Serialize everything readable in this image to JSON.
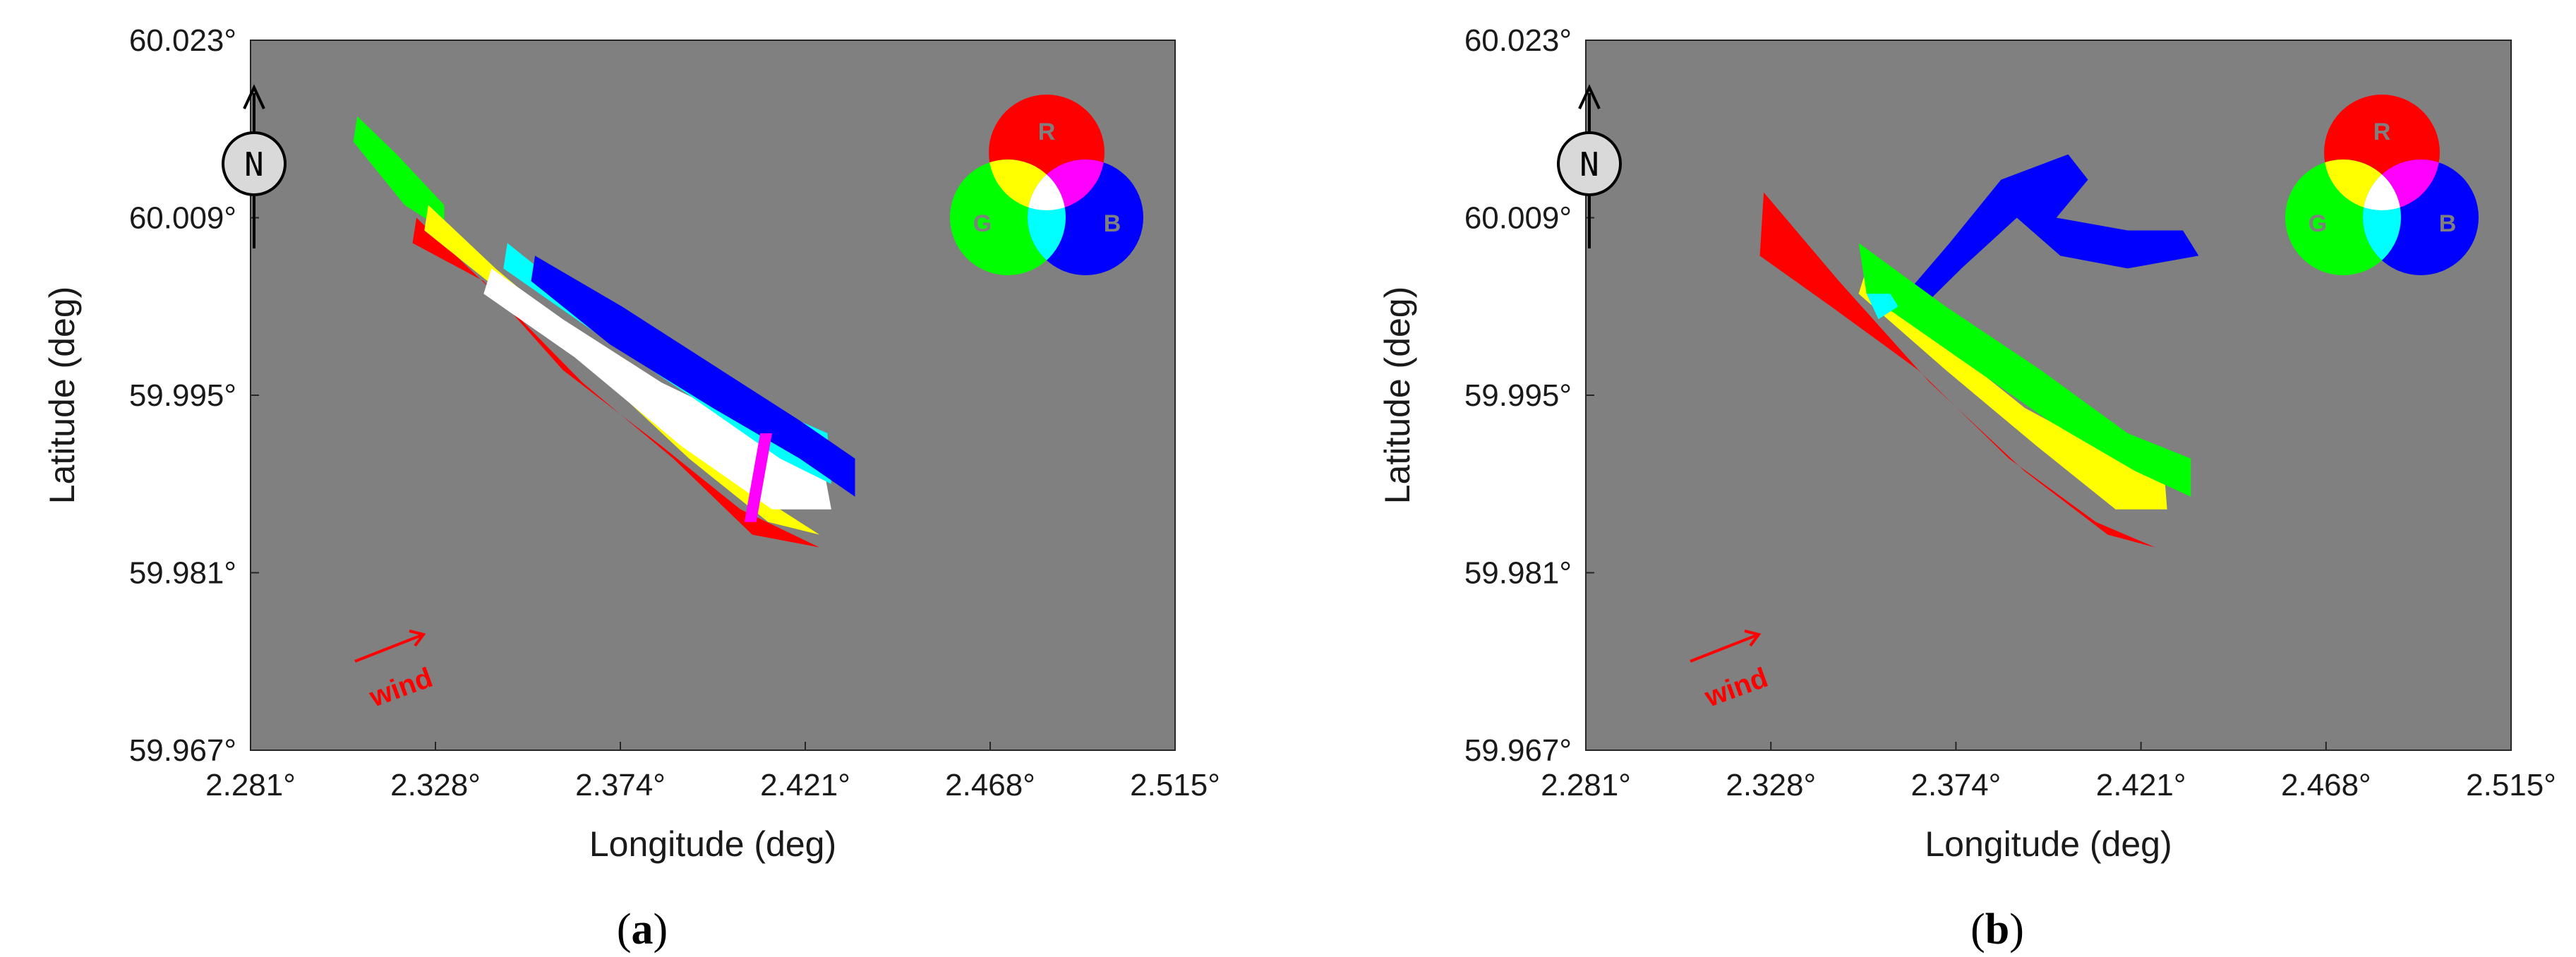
{
  "panels": [
    {
      "label": "a"
    },
    {
      "label": "b"
    }
  ],
  "legend": {
    "r": "R",
    "g": "G",
    "b": "B"
  },
  "north_label": "N",
  "wind_label": "wind",
  "colors": {
    "background": "#808080",
    "red": "#ff0000",
    "green": "#00ff00",
    "blue": "#0000ff",
    "yellow": "#ffff00",
    "cyan": "#00ffff",
    "magenta": "#ff00ff",
    "white": "#ffffff"
  },
  "chart_data": [
    {
      "type": "heatmap",
      "description_of_mapping": "RGB composite",
      "xlabel": "Longitude (deg)",
      "ylabel": "Latitude (deg)",
      "xticks": [
        "2.281°",
        "2.328°",
        "2.374°",
        "2.421°",
        "2.468°",
        "2.515°"
      ],
      "yticks": [
        "60.023°",
        "60.009°",
        "59.995°",
        "59.981°",
        "59.967°"
      ],
      "xlim": [
        2.281,
        2.515
      ],
      "ylim": [
        59.967,
        60.023
      ],
      "regions": [
        {
          "color": "green",
          "polygon": [
            [
              2.308,
              60.017
            ],
            [
              2.318,
              60.014
            ],
            [
              2.33,
              60.01
            ],
            [
              2.33,
              60.008
            ],
            [
              2.32,
              60.01
            ],
            [
              2.307,
              60.015
            ]
          ]
        },
        {
          "color": "red",
          "polygon": [
            [
              2.323,
              60.009
            ],
            [
              2.343,
              60.003
            ],
            [
              2.365,
              59.996
            ],
            [
              2.388,
              59.99
            ],
            [
              2.408,
              59.984
            ],
            [
              2.425,
              59.983
            ],
            [
              2.405,
              59.986
            ],
            [
              2.385,
              59.991
            ],
            [
              2.36,
              59.997
            ],
            [
              2.34,
              60.004
            ],
            [
              2.322,
              60.007
            ]
          ]
        },
        {
          "color": "yellow",
          "polygon": [
            [
              2.325,
              60.008
            ],
            [
              2.345,
              60.003
            ],
            [
              2.368,
              59.997
            ],
            [
              2.392,
              59.99
            ],
            [
              2.412,
              59.985
            ],
            [
              2.425,
              59.984
            ],
            [
              2.41,
              59.987
            ],
            [
              2.386,
              59.993
            ],
            [
              2.362,
              60.0
            ],
            [
              2.343,
              60.005
            ],
            [
              2.326,
              60.01
            ]
          ]
        },
        {
          "color": "white",
          "polygon": [
            [
              2.34,
              60.003
            ],
            [
              2.363,
              59.998
            ],
            [
              2.39,
              59.991
            ],
            [
              2.413,
              59.986
            ],
            [
              2.428,
              59.986
            ],
            [
              2.425,
              59.991
            ],
            [
              2.405,
              59.993
            ],
            [
              2.385,
              59.996
            ],
            [
              2.36,
              60.001
            ],
            [
              2.342,
              60.005
            ]
          ]
        },
        {
          "color": "cyan",
          "polygon": [
            [
              2.345,
              60.005
            ],
            [
              2.368,
              60.0
            ],
            [
              2.392,
              59.995
            ],
            [
              2.415,
              59.99
            ],
            [
              2.428,
              59.988
            ],
            [
              2.427,
              59.992
            ],
            [
              2.405,
              59.995
            ],
            [
              2.38,
              59.999
            ],
            [
              2.358,
              60.004
            ],
            [
              2.346,
              60.007
            ]
          ]
        },
        {
          "color": "blue",
          "polygon": [
            [
              2.353,
              60.006
            ],
            [
              2.375,
              60.002
            ],
            [
              2.4,
              59.997
            ],
            [
              2.42,
              59.993
            ],
            [
              2.434,
              59.99
            ],
            [
              2.434,
              59.987
            ],
            [
              2.42,
              59.99
            ],
            [
              2.398,
              59.994
            ],
            [
              2.372,
              59.999
            ],
            [
              2.352,
              60.004
            ]
          ]
        },
        {
          "color": "magenta",
          "polygon": [
            [
              2.406,
              59.985
            ],
            [
              2.409,
              59.985
            ],
            [
              2.413,
              59.992
            ],
            [
              2.41,
              59.992
            ]
          ]
        }
      ]
    },
    {
      "type": "heatmap",
      "description_of_mapping": "RGB composite",
      "xlabel": "Longitude (deg)",
      "ylabel": "Latitude (deg)",
      "xticks": [
        "2.281°",
        "2.328°",
        "2.374°",
        "2.421°",
        "2.468°",
        "2.515°"
      ],
      "yticks": [
        "60.023°",
        "60.009°",
        "59.995°",
        "59.981°",
        "59.967°"
      ],
      "xlim": [
        2.281,
        2.515
      ],
      "ylim": [
        59.967,
        60.023
      ],
      "regions": [
        {
          "color": "blue",
          "polygon": [
            [
              2.362,
              60.003
            ],
            [
              2.373,
              60.007
            ],
            [
              2.386,
              60.012
            ],
            [
              2.403,
              60.014
            ],
            [
              2.408,
              60.012
            ],
            [
              2.4,
              60.009
            ],
            [
              2.418,
              60.008
            ],
            [
              2.432,
              60.008
            ],
            [
              2.436,
              60.006
            ],
            [
              2.418,
              60.005
            ],
            [
              2.401,
              60.006
            ],
            [
              2.39,
              60.009
            ],
            [
              2.376,
              60.005
            ],
            [
              2.363,
              60.001
            ]
          ]
        },
        {
          "color": "red",
          "polygon": [
            [
              2.326,
              60.011
            ],
            [
              2.345,
              60.004
            ],
            [
              2.368,
              59.996
            ],
            [
              2.392,
              59.989
            ],
            [
              2.413,
              59.984
            ],
            [
              2.425,
              59.983
            ],
            [
              2.41,
              59.985
            ],
            [
              2.388,
              59.99
            ],
            [
              2.365,
              59.997
            ],
            [
              2.343,
              60.002
            ],
            [
              2.325,
              60.006
            ]
          ]
        },
        {
          "color": "yellow",
          "polygon": [
            [
              2.35,
              60.003
            ],
            [
              2.372,
              59.997
            ],
            [
              2.395,
              59.991
            ],
            [
              2.415,
              59.986
            ],
            [
              2.428,
              59.986
            ],
            [
              2.427,
              59.99
            ],
            [
              2.41,
              59.991
            ],
            [
              2.392,
              59.994
            ],
            [
              2.372,
              59.999
            ],
            [
              2.352,
              60.005
            ]
          ]
        },
        {
          "color": "green",
          "polygon": [
            [
              2.35,
              60.007
            ],
            [
              2.372,
              60.002
            ],
            [
              2.396,
              59.997
            ],
            [
              2.418,
              59.992
            ],
            [
              2.434,
              59.99
            ],
            [
              2.434,
              59.987
            ],
            [
              2.42,
              59.989
            ],
            [
              2.398,
              59.993
            ],
            [
              2.375,
              59.998
            ],
            [
              2.352,
              60.003
            ]
          ]
        },
        {
          "color": "cyan",
          "polygon": [
            [
              2.352,
              60.003
            ],
            [
              2.358,
              60.003
            ],
            [
              2.36,
              60.002
            ],
            [
              2.355,
              60.001
            ]
          ]
        }
      ]
    }
  ]
}
